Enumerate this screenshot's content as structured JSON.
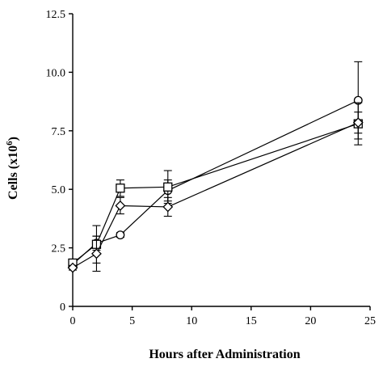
{
  "chart_data": {
    "type": "line",
    "title": "",
    "xlabel": "Hours after Administration",
    "ylabel_main": "Cells (x10",
    "ylabel_sup": "6",
    "ylabel_end": ")",
    "xlim": [
      0,
      25
    ],
    "ylim": [
      0,
      12.5
    ],
    "xticks": [
      "0",
      "5",
      "10",
      "15",
      "20",
      "25"
    ],
    "xtick_values": [
      0,
      5,
      10,
      15,
      20,
      25
    ],
    "yticks": [
      "0",
      "2.5",
      "5.0",
      "7.5",
      "10.0",
      "12.5"
    ],
    "ytick_values": [
      0,
      2.5,
      5.0,
      7.5,
      10.0,
      12.5
    ],
    "grid": false,
    "series": [
      {
        "marker": "circle",
        "x": [
          0,
          2,
          4,
          8,
          24
        ],
        "y": [
          1.8,
          2.7,
          3.05,
          4.95,
          8.8
        ],
        "err": [
          0.15,
          0.3,
          0.1,
          0.45,
          1.65
        ]
      },
      {
        "marker": "square",
        "x": [
          0,
          2,
          4,
          8,
          24
        ],
        "y": [
          1.85,
          2.65,
          5.05,
          5.1,
          7.8
        ],
        "err": [
          0.15,
          0.8,
          0.35,
          0.7,
          0.9
        ]
      },
      {
        "marker": "diamond",
        "x": [
          0,
          2,
          4,
          8,
          24
        ],
        "y": [
          1.65,
          2.25,
          4.3,
          4.25,
          7.85
        ],
        "err": [
          0.1,
          0.75,
          0.35,
          0.4,
          0.45
        ]
      }
    ]
  }
}
